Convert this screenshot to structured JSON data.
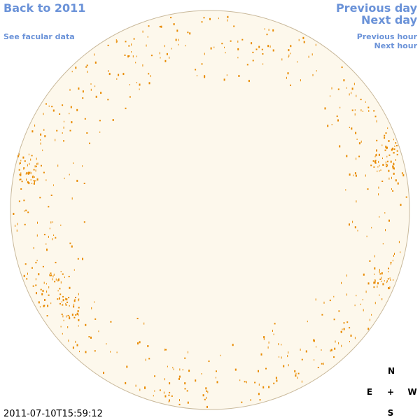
{
  "nav": {
    "back": "Back to 2011",
    "previous_day": "Previous day",
    "next_day": "Next day",
    "facular_data": "See facular data",
    "previous_hour": "Previous hour",
    "next_hour": "Next hour"
  },
  "compass": {
    "north": "N",
    "east": "E",
    "center": "+",
    "west": "W",
    "south": "S"
  },
  "timestamp": "2011-07-10T15:59:12"
}
